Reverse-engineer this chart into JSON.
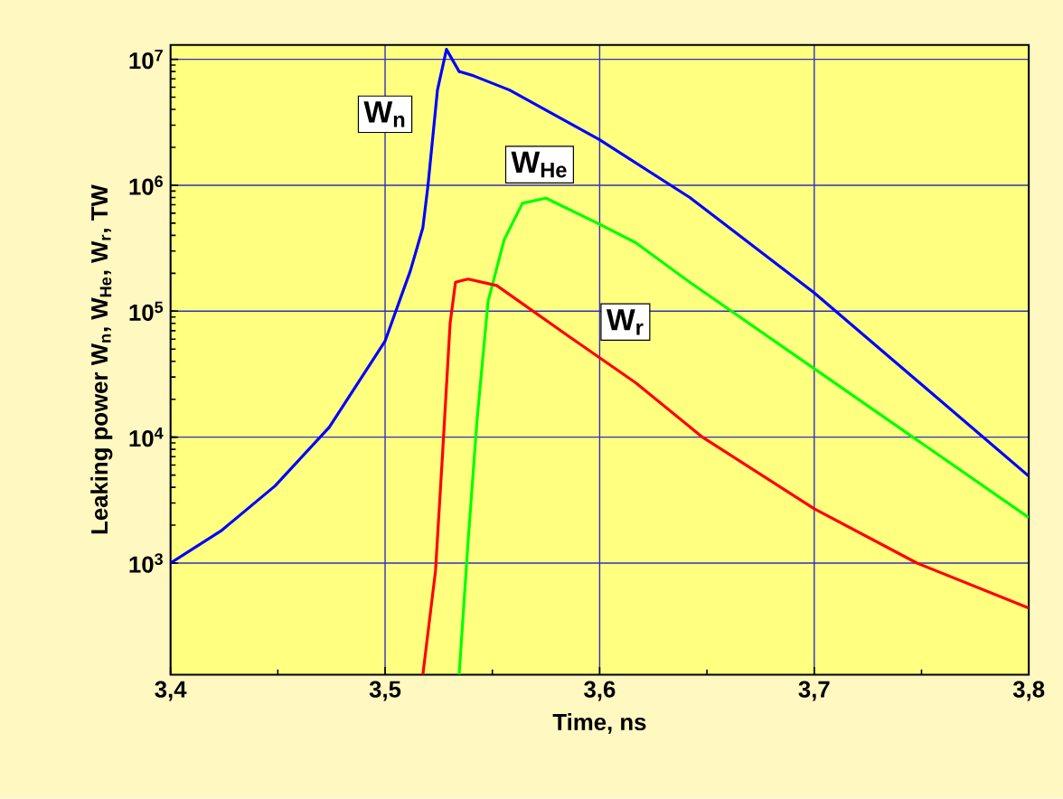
{
  "chart_data": {
    "type": "line",
    "xlabel": "Time, ns",
    "ylabel": "Leaking power W$_{n}$, W$_{He}$, W$_{r}$, TW",
    "log": "y",
    "grid": true,
    "legend": false,
    "marker": "none",
    "line_style": "solid",
    "xlim": [
      3.4,
      3.8
    ],
    "ylim": [
      130,
      13000000
    ],
    "xticks": [
      {
        "value": 3.4,
        "label": "3,4"
      },
      {
        "value": 3.5,
        "label": "3,5"
      },
      {
        "value": 3.6,
        "label": "3,6"
      },
      {
        "value": 3.7,
        "label": "3,7"
      },
      {
        "value": 3.8,
        "label": "3,8"
      }
    ],
    "yticks": [
      {
        "value": 1000,
        "label": "10$^{3}$"
      },
      {
        "value": 10000,
        "label": "10$^{4}$"
      },
      {
        "value": 100000,
        "label": "10$^{5}$"
      },
      {
        "value": 1000000,
        "label": "10$^{6}$"
      },
      {
        "value": 10000000,
        "label": "10$^{7}$"
      }
    ],
    "series": [
      {
        "name": "W$_{n}$",
        "color": "#0000ff",
        "x": [
          3.4,
          3.4235,
          3.4487,
          3.474,
          3.5,
          3.5118,
          3.5176,
          3.52,
          3.5244,
          3.5286,
          3.5345,
          3.5412,
          3.558,
          3.6,
          3.642,
          3.7,
          3.8
        ],
        "values": [
          1000,
          1800,
          4100,
          12000,
          58000,
          210000,
          460000,
          1000000,
          5700000,
          12000000,
          8000000,
          7400000,
          5700000,
          2300000,
          800000,
          140000,
          4900
        ]
      },
      {
        "name": "W$_{He}$",
        "color": "#00ff00",
        "x": [
          3.5345,
          3.5387,
          3.5429,
          3.548,
          3.5555,
          3.564,
          3.575,
          3.6,
          3.6168,
          3.642,
          3.7,
          3.8
        ],
        "values": [
          130,
          1500,
          14000,
          120000,
          370000,
          720000,
          790000,
          490000,
          350000,
          170000,
          35000,
          2300
        ]
      },
      {
        "name": "W$_{r}$",
        "color": "#ff0000",
        "x": [
          3.5176,
          3.5235,
          3.5269,
          3.5303,
          3.5328,
          3.5387,
          3.552,
          3.5857,
          3.6168,
          3.6479,
          3.7,
          3.7479,
          3.8
        ],
        "values": [
          130,
          870,
          8000,
          80000,
          170000,
          180000,
          160000,
          63000,
          27000,
          10000,
          2700,
          1000,
          440
        ]
      }
    ]
  }
}
